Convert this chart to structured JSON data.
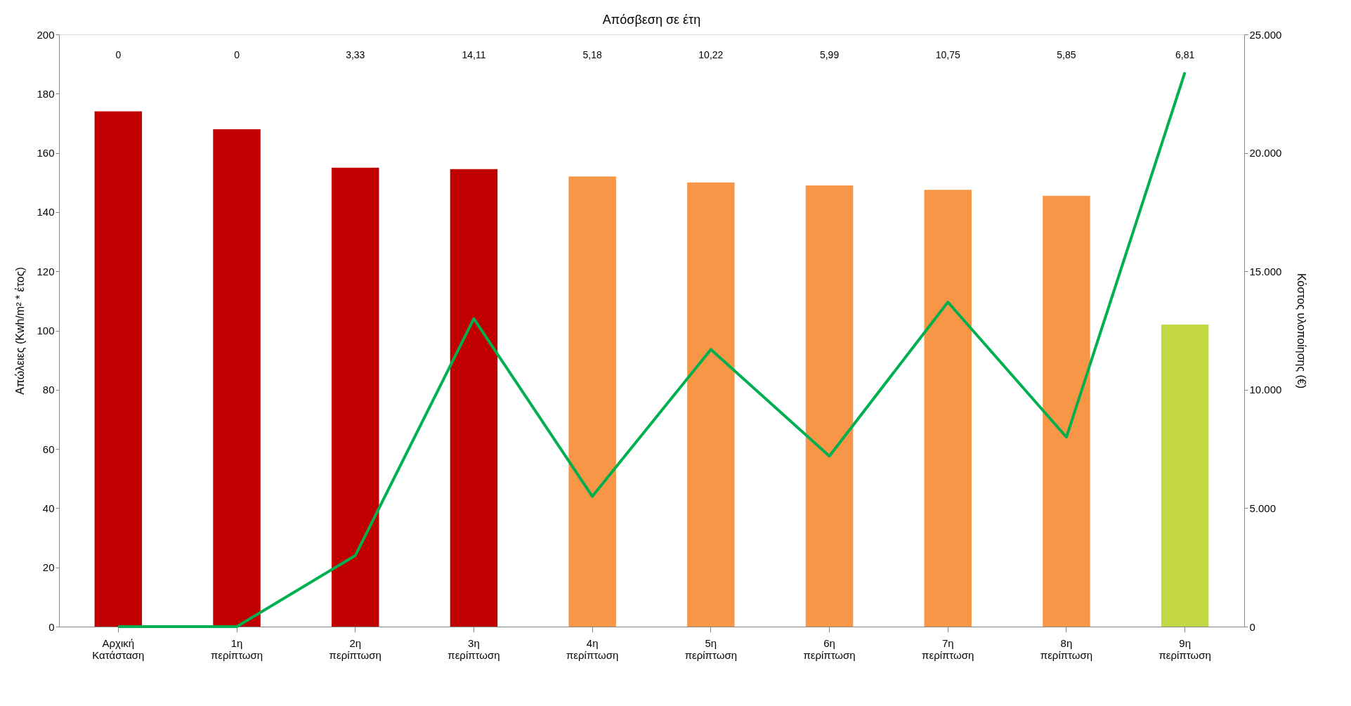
{
  "chart_data": {
    "type": "bar",
    "title": "Απόσβεση σε έτη",
    "categories": [
      "Αρχική Κατάσταση",
      "1η περίπτωση",
      "2η περίπτωση",
      "3η περίπτωση",
      "4η περίπτωση",
      "5η περίπτωση",
      "6η περίπτωση",
      "7η περίπτωση",
      "8η περίπτωση",
      "9η περίπτωση"
    ],
    "series": [
      {
        "colors": [
          "#c00000",
          "#c00000",
          "#c00000",
          "#c00000",
          "#f79646",
          "#f79646",
          "#f79646",
          "#f79646",
          "#f79646",
          "#c4d845"
        ],
        "values": [
          174,
          168,
          155,
          154.5,
          152,
          150,
          149,
          147.5,
          145.5,
          102
        ]
      },
      {
        "type": "line",
        "axis": "y2",
        "color": "#00b050",
        "values": [
          0,
          0,
          3000,
          13000,
          5500,
          11700,
          7200,
          13700,
          8000,
          23400
        ]
      }
    ],
    "ylabel": "Απώλειες (Kwh/m² * έτος)",
    "y2label": "Κόστος υλοποίησης (€)",
    "ylim": [
      0,
      200
    ],
    "yticks": [
      0,
      20,
      40,
      60,
      80,
      100,
      120,
      140,
      160,
      180,
      200
    ],
    "y2lim": [
      0,
      25000
    ],
    "y2ticks": [
      {
        "value": 0,
        "label": "0"
      },
      {
        "value": 5000,
        "label": "5.000"
      },
      {
        "value": 10000,
        "label": "10.000"
      },
      {
        "value": 15000,
        "label": "15.000"
      },
      {
        "value": 20000,
        "label": "20.000"
      },
      {
        "value": 25000,
        "label": "25.000"
      }
    ],
    "annotations": [
      "0",
      "0",
      "3,33",
      "14,11",
      "5,18",
      "10,22",
      "5,99",
      "10,75",
      "5,85",
      "6,81"
    ],
    "grid": false,
    "legend": false,
    "marker": "none",
    "line_style": "solid"
  }
}
